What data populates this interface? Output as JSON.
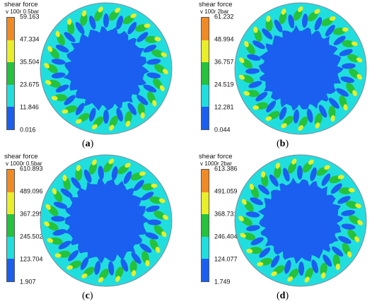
{
  "colors": {
    "band1": "#1a5ff0",
    "band2": "#21dede",
    "band3": "#24c23d",
    "band4": "#e9ee2a",
    "band5": "#f08a25",
    "core": "#1a5ff0",
    "ring": "#21dede"
  },
  "panels": [
    {
      "title": "shear force",
      "subtitle": "v 100r 0.5bar",
      "ticks": [
        "59.163",
        "47.334",
        "35.504",
        "23.675",
        "11.846",
        "0.016"
      ],
      "caption_open": "(",
      "caption_letter": "a",
      "caption_close": ")"
    },
    {
      "title": "shear force",
      "subtitle": "v 100r 2bar",
      "ticks": [
        "61.232",
        "48.994",
        "36.757",
        "24.519",
        "12.281",
        "0.044"
      ],
      "caption_open": "(",
      "caption_letter": "b",
      "caption_close": ")"
    },
    {
      "title": "shear force",
      "subtitle": "v 1000r 0.5bar",
      "ticks": [
        "610.893",
        "489.096",
        "367.299",
        "245.502",
        "123.704",
        "1.907"
      ],
      "caption_open": "(",
      "caption_letter": "c",
      "caption_close": ")"
    },
    {
      "title": "shear force",
      "subtitle": "v 1000r 2bar",
      "ticks": [
        "613.386",
        "491.059",
        "368.731",
        "246.404",
        "124.077",
        "1.749"
      ],
      "caption_open": "(",
      "caption_letter": "d",
      "caption_close": ")"
    }
  ]
}
